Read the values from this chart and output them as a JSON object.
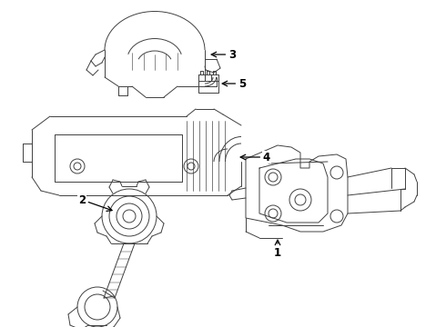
{
  "background_color": "#ffffff",
  "line_color": "#404040",
  "label_color": "#000000",
  "figsize": [
    4.9,
    3.6
  ],
  "dpi": 100,
  "components": {
    "label_fontsize": 8.5,
    "arrow_lw": 0.9,
    "part_lw": 0.7
  }
}
